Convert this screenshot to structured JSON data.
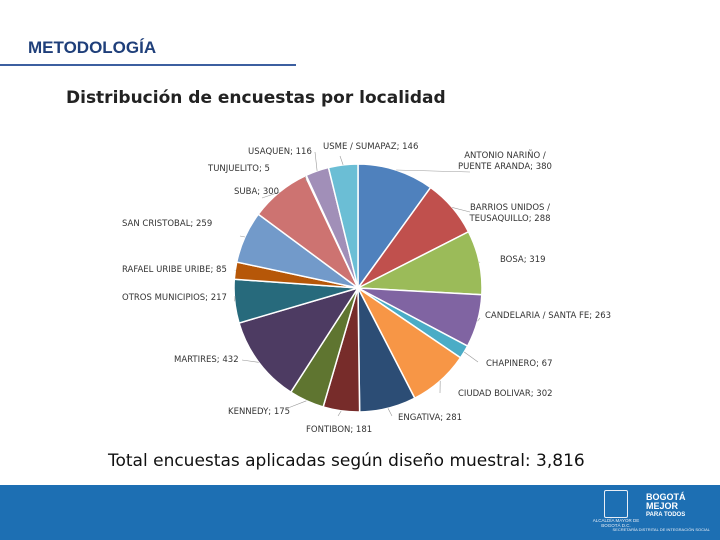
{
  "header": {
    "title": "METODOLOGÍA"
  },
  "subtitle": "Distribución de encuestas por localidad",
  "total_text": "Total encuestas aplicadas según diseño muestral:  3,816",
  "footer": {
    "seal_text": "ALCALDÍA MAYOR DE BOGOTÁ D.C.",
    "brand_line1": "BOGOTÁ",
    "brand_line2": "MEJOR",
    "brand_line3": "PARA TODOS",
    "brand_sub": "SECRETARÍA DISTRITAL DE INTEGRACIÓN SOCIAL"
  },
  "chart_data": {
    "type": "pie",
    "title": "Distribución de encuestas por localidad",
    "legend": "none",
    "slices": [
      {
        "label": "ANTONIO NARIÑO / PUENTE ARANDA; 380",
        "value": 380,
        "color": "#4f81bd"
      },
      {
        "label": "BARRIOS UNIDOS / TEUSAQUILLO; 288",
        "value": 288,
        "color": "#c0504d"
      },
      {
        "label": "BOSA; 319",
        "value": 319,
        "color": "#9bbb59"
      },
      {
        "label": "CANDELARIA / SANTA FE; 263",
        "value": 263,
        "color": "#8064a2"
      },
      {
        "label": "CHAPINERO; 67",
        "value": 67,
        "color": "#4bacc6"
      },
      {
        "label": "CIUDAD BOLIVAR; 302",
        "value": 302,
        "color": "#f79646"
      },
      {
        "label": "ENGATIVA; 281",
        "value": 281,
        "color": "#2c4d75"
      },
      {
        "label": "FONTIBON; 181",
        "value": 181,
        "color": "#772c2a"
      },
      {
        "label": "KENNEDY; 175",
        "value": 175,
        "color": "#5f7530"
      },
      {
        "label": "MARTIRES; 432",
        "value": 432,
        "color": "#4d3b62"
      },
      {
        "label": "OTROS MUNICIPIOS; 217",
        "value": 217,
        "color": "#276a7c"
      },
      {
        "label": "RAFAEL URIBE URIBE; 85",
        "value": 85,
        "color": "#b65708"
      },
      {
        "label": "SAN CRISTOBAL; 259",
        "value": 259,
        "color": "#729aca"
      },
      {
        "label": "SUBA; 300",
        "value": 300,
        "color": "#cd7371"
      },
      {
        "label": "TUNJUELITO; 5",
        "value": 5,
        "color": "#afc97a"
      },
      {
        "label": "USAQUEN; 116",
        "value": 116,
        "color": "#a18fb8"
      },
      {
        "label": "USME / SUMAPAZ; 146",
        "value": 146,
        "color": "#6bbed5"
      }
    ]
  }
}
